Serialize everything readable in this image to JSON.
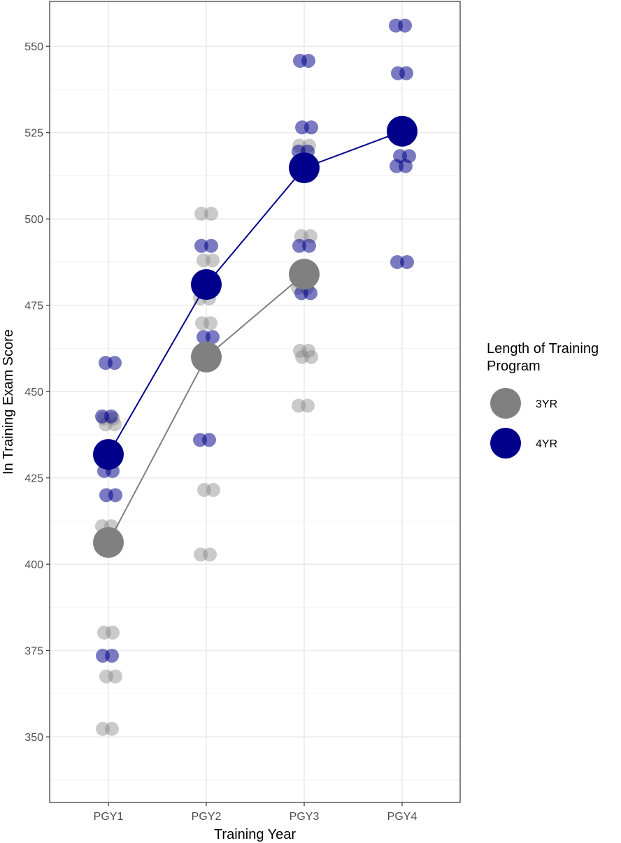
{
  "chart_data": {
    "type": "scatter",
    "xlabel": "Training Year",
    "ylabel": "In Training Exam Score",
    "categories": [
      "PGY1",
      "PGY2",
      "PGY3",
      "PGY4"
    ],
    "ylim": [
      331,
      563
    ],
    "yticks": [
      350,
      375,
      400,
      425,
      450,
      475,
      500,
      525,
      550
    ],
    "grid": true,
    "legend": {
      "title_lines": [
        "Length of Training",
        "Program"
      ],
      "placement": "right"
    },
    "series": [
      {
        "name": "3YR",
        "color": "#808080",
        "means": [
          406.3,
          460,
          484,
          null
        ],
        "points": [
          {
            "x": "PGY1",
            "y": 442.2
          },
          {
            "x": "PGY1",
            "y": 440.5
          },
          {
            "x": "PGY1",
            "y": 411
          },
          {
            "x": "PGY1",
            "y": 380.2
          },
          {
            "x": "PGY1",
            "y": 367.5
          },
          {
            "x": "PGY1",
            "y": 352.3
          },
          {
            "x": "PGY2",
            "y": 501.5
          },
          {
            "x": "PGY2",
            "y": 488
          },
          {
            "x": "PGY2",
            "y": 477
          },
          {
            "x": "PGY2",
            "y": 469.8
          },
          {
            "x": "PGY2",
            "y": 421.5
          },
          {
            "x": "PGY2",
            "y": 402.8
          },
          {
            "x": "PGY3",
            "y": 521.2
          },
          {
            "x": "PGY3",
            "y": 495
          },
          {
            "x": "PGY3",
            "y": 480
          },
          {
            "x": "PGY3",
            "y": 461.8
          },
          {
            "x": "PGY3",
            "y": 460
          },
          {
            "x": "PGY3",
            "y": 445.9
          }
        ]
      },
      {
        "name": "4YR",
        "color": "#00008b",
        "means": [
          431.8,
          481,
          514.8,
          525.4
        ],
        "points": [
          {
            "x": "PGY1",
            "y": 458.3
          },
          {
            "x": "PGY1",
            "y": 442.8
          },
          {
            "x": "PGY1",
            "y": 427
          },
          {
            "x": "PGY1",
            "y": 420
          },
          {
            "x": "PGY1",
            "y": 373.5
          },
          {
            "x": "PGY2",
            "y": 492.2
          },
          {
            "x": "PGY2",
            "y": 465.8
          },
          {
            "x": "PGY2",
            "y": 436
          },
          {
            "x": "PGY3",
            "y": 545.8
          },
          {
            "x": "PGY3",
            "y": 526.5
          },
          {
            "x": "PGY3",
            "y": 519.5
          },
          {
            "x": "PGY3",
            "y": 492.2
          },
          {
            "x": "PGY3",
            "y": 478.5
          },
          {
            "x": "PGY4",
            "y": 556
          },
          {
            "x": "PGY4",
            "y": 542.2
          },
          {
            "x": "PGY4",
            "y": 518.2
          },
          {
            "x": "PGY4",
            "y": 515.3
          },
          {
            "x": "PGY4",
            "y": 487.5
          }
        ]
      }
    ]
  }
}
